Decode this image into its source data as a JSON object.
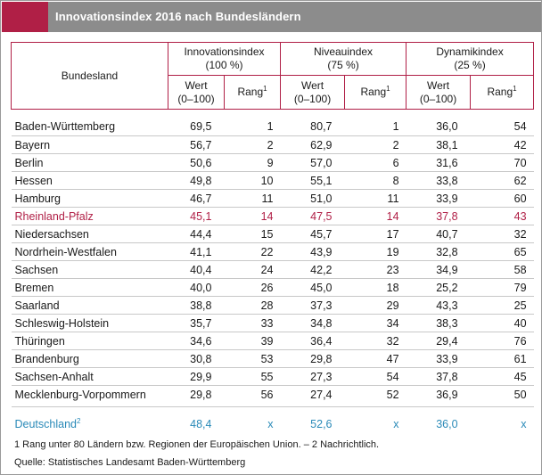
{
  "title": "Innovationsindex  2016 nach Bundesländern",
  "colors": {
    "accent": "#b01f46",
    "titlebar": "#8c8c8c",
    "highlight": "#b01f46",
    "total": "#2a8ab8"
  },
  "header": {
    "bundesland": "Bundesland",
    "groups": [
      {
        "name": "Innovationsindex",
        "weight": "(100 %)"
      },
      {
        "name": "Niveauindex",
        "weight": "(75 %)"
      },
      {
        "name": "Dynamikindex",
        "weight": "(25 %)"
      }
    ],
    "wert_label": "Wert",
    "wert_range": "(0–100)",
    "rang_label": "Rang",
    "rang_sup": "1"
  },
  "rows": [
    {
      "name": "Baden-Württemberg",
      "v": [
        "69,5",
        "1",
        "80,7",
        "1",
        "36,0",
        "54"
      ]
    },
    {
      "name": "Bayern",
      "v": [
        "56,7",
        "2",
        "62,9",
        "2",
        "38,1",
        "42"
      ]
    },
    {
      "name": "Berlin",
      "v": [
        "50,6",
        "9",
        "57,0",
        "6",
        "31,6",
        "70"
      ]
    },
    {
      "name": "Hessen",
      "v": [
        "49,8",
        "10",
        "55,1",
        "8",
        "33,8",
        "62"
      ]
    },
    {
      "name": "Hamburg",
      "v": [
        "46,7",
        "11",
        "51,0",
        "11",
        "33,9",
        "60"
      ]
    },
    {
      "name": "Rheinland-Pfalz",
      "v": [
        "45,1",
        "14",
        "47,5",
        "14",
        "37,8",
        "43"
      ]
    },
    {
      "name": "Niedersachsen",
      "v": [
        "44,4",
        "15",
        "45,7",
        "17",
        "40,7",
        "32"
      ]
    },
    {
      "name": "Nordrhein-Westfalen",
      "v": [
        "41,1",
        "22",
        "43,9",
        "19",
        "32,8",
        "65"
      ]
    },
    {
      "name": "Sachsen",
      "v": [
        "40,4",
        "24",
        "42,2",
        "23",
        "34,9",
        "58"
      ]
    },
    {
      "name": "Bremen",
      "v": [
        "40,0",
        "26",
        "45,0",
        "18",
        "25,2",
        "79"
      ]
    },
    {
      "name": "Saarland",
      "v": [
        "38,8",
        "28",
        "37,3",
        "29",
        "43,3",
        "25"
      ]
    },
    {
      "name": "Schleswig-Holstein",
      "v": [
        "35,7",
        "33",
        "34,8",
        "34",
        "38,3",
        "40"
      ]
    },
    {
      "name": "Thüringen",
      "v": [
        "34,6",
        "39",
        "36,4",
        "32",
        "29,4",
        "76"
      ]
    },
    {
      "name": "Brandenburg",
      "v": [
        "30,8",
        "53",
        "29,8",
        "47",
        "33,9",
        "61"
      ]
    },
    {
      "name": "Sachsen-Anhalt",
      "v": [
        "29,9",
        "55",
        "27,3",
        "54",
        "37,8",
        "45"
      ]
    },
    {
      "name": "Mecklenburg-Vorpommern",
      "v": [
        "29,8",
        "56",
        "27,4",
        "52",
        "36,9",
        "50"
      ]
    }
  ],
  "total": {
    "name": "Deutschland",
    "sup": "2",
    "v": [
      "48,4",
      "x",
      "52,6",
      "x",
      "36,0",
      "x"
    ]
  },
  "footnote": "1 Rang unter 80 Ländern bzw. Regionen der Europäischen Union. – 2 Nachrichtlich.",
  "source": "Quelle: Statistisches Landesamt Baden-Württemberg"
}
